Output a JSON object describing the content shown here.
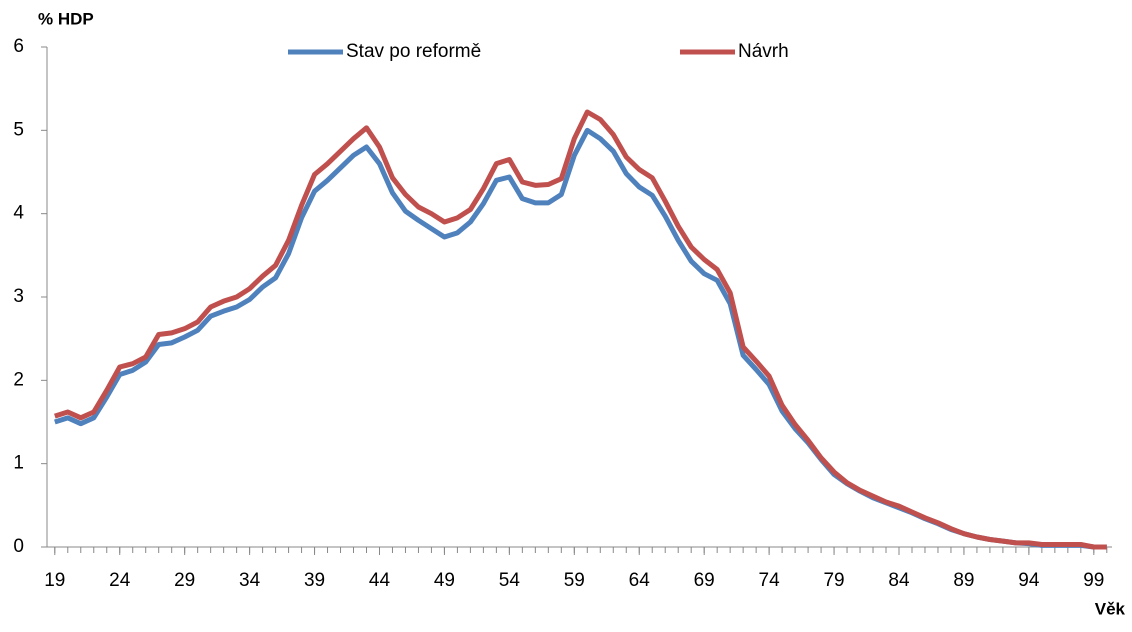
{
  "chart_data": {
    "type": "line",
    "ylabel": "% HDP",
    "xlabel": "Věk",
    "x": [
      19,
      20,
      21,
      22,
      23,
      24,
      25,
      26,
      27,
      28,
      29,
      30,
      31,
      32,
      33,
      34,
      35,
      36,
      37,
      38,
      39,
      40,
      41,
      42,
      43,
      44,
      45,
      46,
      47,
      48,
      49,
      50,
      51,
      52,
      53,
      54,
      55,
      56,
      57,
      58,
      59,
      60,
      61,
      62,
      63,
      64,
      65,
      66,
      67,
      68,
      69,
      70,
      71,
      72,
      73,
      74,
      75,
      76,
      77,
      78,
      79,
      80,
      81,
      82,
      83,
      84,
      85,
      86,
      87,
      88,
      89,
      90,
      91,
      92,
      93,
      94,
      95,
      96,
      97,
      98,
      99,
      100
    ],
    "series": [
      {
        "name": "Stav po reformě",
        "color": "#4f81bd",
        "values": [
          1.5,
          1.55,
          1.48,
          1.55,
          1.8,
          2.07,
          2.12,
          2.22,
          2.43,
          2.45,
          2.52,
          2.6,
          2.77,
          2.83,
          2.88,
          2.97,
          3.12,
          3.23,
          3.52,
          3.95,
          4.27,
          4.4,
          4.55,
          4.7,
          4.8,
          4.6,
          4.25,
          4.03,
          3.92,
          3.82,
          3.72,
          3.77,
          3.9,
          4.12,
          4.4,
          4.44,
          4.18,
          4.13,
          4.13,
          4.23,
          4.7,
          5.0,
          4.9,
          4.75,
          4.48,
          4.32,
          4.22,
          3.97,
          3.68,
          3.43,
          3.28,
          3.2,
          2.92,
          2.3,
          2.13,
          1.95,
          1.63,
          1.42,
          1.25,
          1.05,
          0.87,
          0.76,
          0.67,
          0.59,
          0.53,
          0.47,
          0.41,
          0.34,
          0.28,
          0.21,
          0.16,
          0.12,
          0.09,
          0.07,
          0.05,
          0.04,
          0.02,
          0.02,
          0.02,
          0.02,
          0,
          0
        ]
      },
      {
        "name": "Návrh",
        "color": "#c0504d",
        "values": [
          1.57,
          1.62,
          1.55,
          1.62,
          1.88,
          2.16,
          2.2,
          2.28,
          2.55,
          2.57,
          2.62,
          2.7,
          2.88,
          2.95,
          3.0,
          3.1,
          3.25,
          3.38,
          3.68,
          4.1,
          4.47,
          4.6,
          4.75,
          4.9,
          5.03,
          4.8,
          4.43,
          4.23,
          4.08,
          4.0,
          3.9,
          3.95,
          4.05,
          4.3,
          4.6,
          4.65,
          4.38,
          4.34,
          4.35,
          4.42,
          4.9,
          5.22,
          5.13,
          4.95,
          4.68,
          4.53,
          4.43,
          4.15,
          3.85,
          3.6,
          3.45,
          3.33,
          3.05,
          2.4,
          2.23,
          2.05,
          1.7,
          1.47,
          1.28,
          1.07,
          0.9,
          0.77,
          0.68,
          0.61,
          0.54,
          0.49,
          0.42,
          0.35,
          0.29,
          0.22,
          0.16,
          0.12,
          0.09,
          0.07,
          0.05,
          0.05,
          0.03,
          0.03,
          0.03,
          0.03,
          0,
          0
        ]
      }
    ],
    "xlim": [
      18.4,
      100.4
    ],
    "xticks": [
      19,
      24,
      29,
      34,
      39,
      44,
      49,
      54,
      59,
      64,
      69,
      74,
      79,
      84,
      89,
      94,
      99
    ],
    "ylim": [
      0,
      6
    ],
    "yticks": [
      0,
      1,
      2,
      3,
      4,
      5,
      6
    ],
    "grid": false,
    "legend": "top"
  }
}
